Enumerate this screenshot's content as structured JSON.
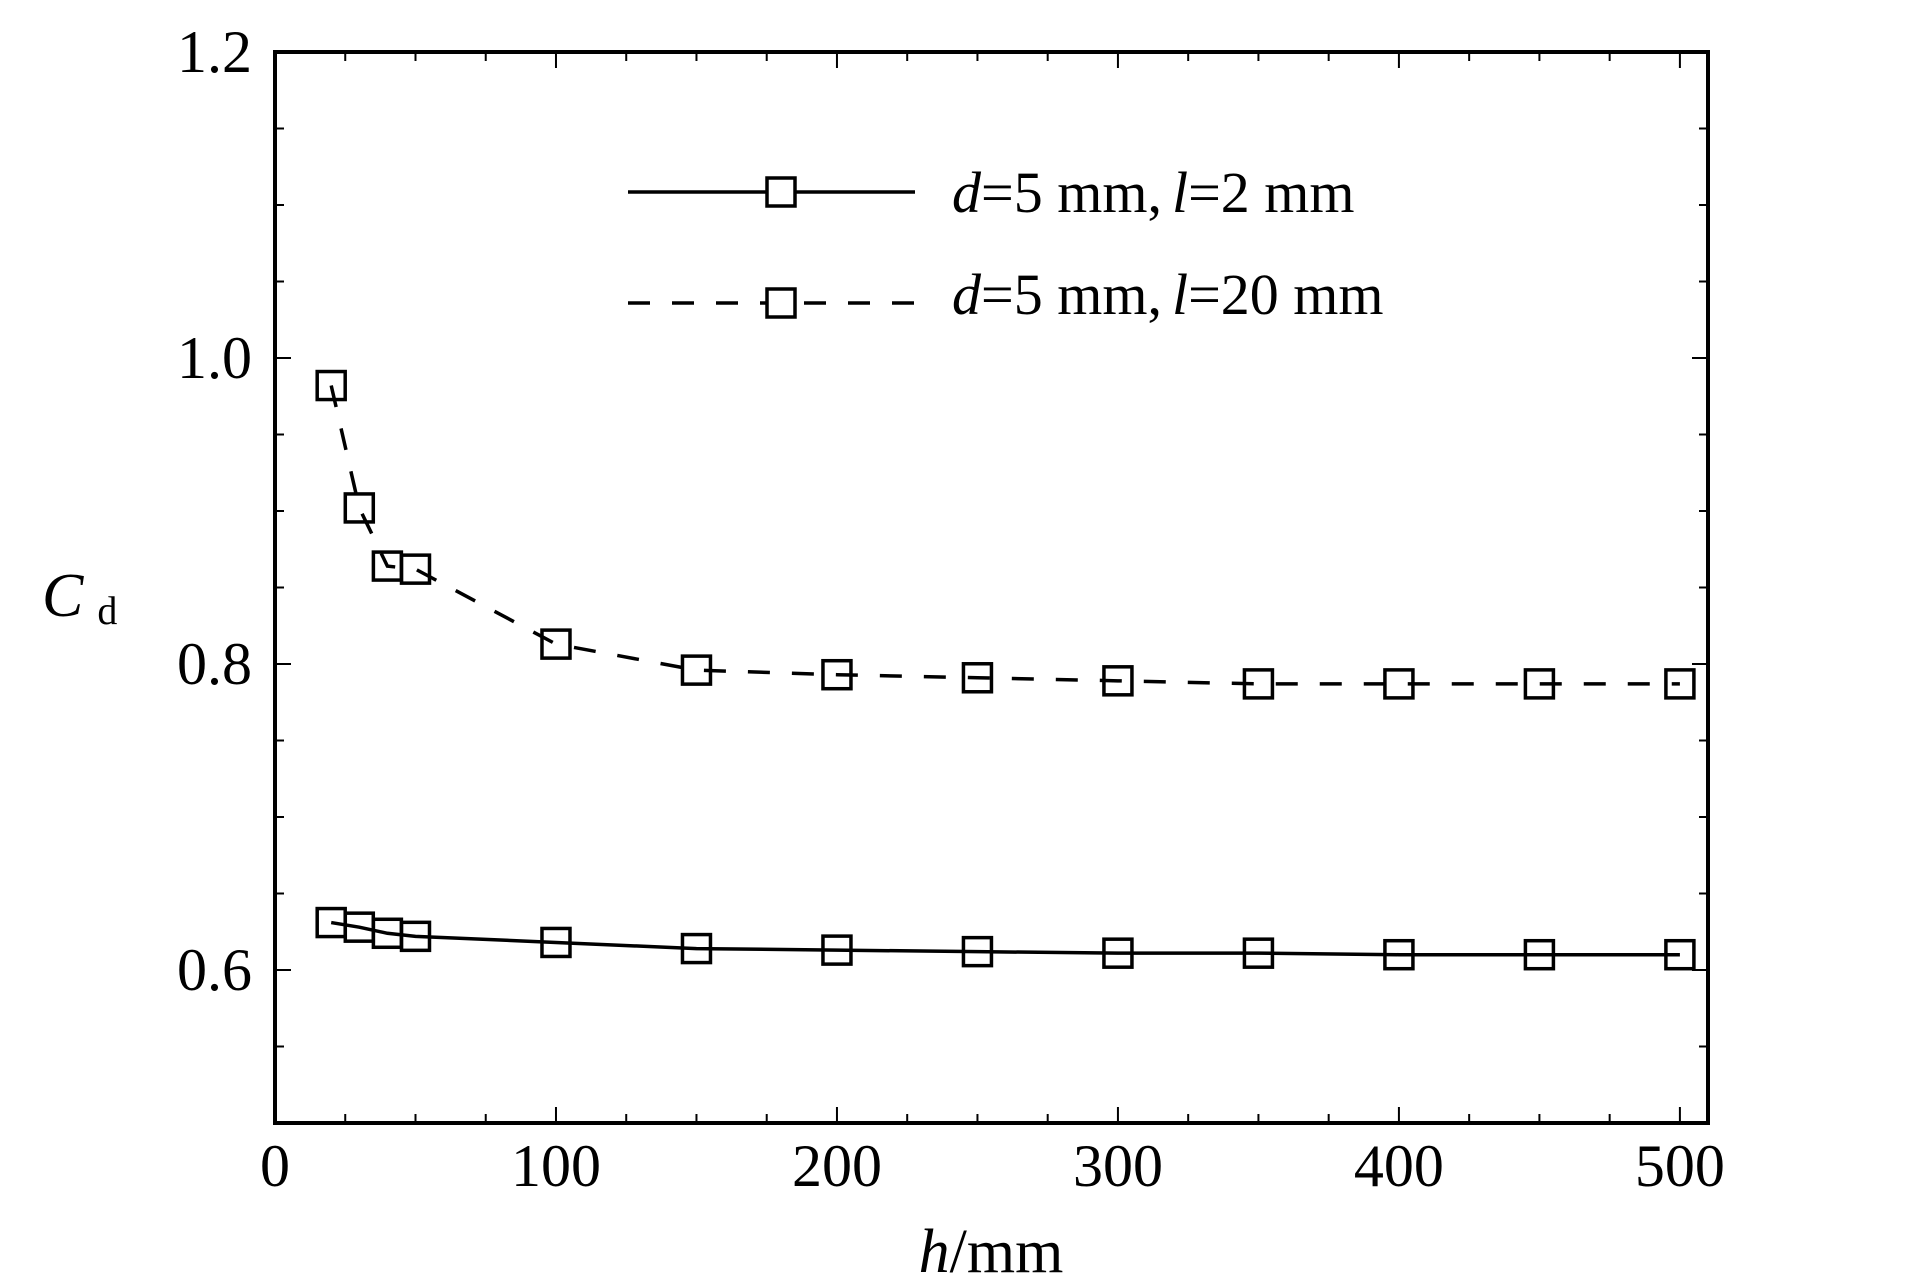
{
  "chart_data": {
    "type": "line",
    "xlabel": {
      "var": "h",
      "unit": "/mm"
    },
    "ylabel": {
      "var": "C",
      "sub": "d"
    },
    "xlim": [
      0,
      510
    ],
    "ylim": [
      0.5,
      1.2
    ],
    "xticks": [
      0,
      100,
      200,
      300,
      400,
      500
    ],
    "xtick_labels": [
      "0",
      "100",
      "200",
      "300",
      "400",
      "500"
    ],
    "yticks": [
      0.6,
      0.8,
      1.0,
      1.2
    ],
    "ytick_labels": [
      "0.6",
      "0.8",
      "1.0",
      "1.2"
    ],
    "grid": false,
    "legend_position": "top-center",
    "marker": "square",
    "series": [
      {
        "name": "d = 5 mm, l = 2 mm",
        "legend": {
          "d": "d",
          "dval": "=5 mm,",
          "l": "l",
          "lval": "=2 mm"
        },
        "line_style": "solid",
        "x": [
          20,
          30,
          40,
          50,
          100,
          150,
          200,
          250,
          300,
          350,
          400,
          450,
          500
        ],
        "y": [
          0.631,
          0.628,
          0.624,
          0.622,
          0.618,
          0.614,
          0.613,
          0.612,
          0.611,
          0.611,
          0.61,
          0.61,
          0.61
        ]
      },
      {
        "name": "d = 5 mm, l = 20 mm",
        "legend": {
          "d": "d",
          "dval": "=5 mm,",
          "l": "l",
          "lval": "=20 mm"
        },
        "line_style": "dashed",
        "x": [
          20,
          30,
          40,
          50,
          100,
          150,
          200,
          250,
          300,
          350,
          400,
          450,
          500
        ],
        "y": [
          0.982,
          0.902,
          0.864,
          0.862,
          0.813,
          0.796,
          0.793,
          0.791,
          0.789,
          0.787,
          0.787,
          0.787,
          0.787
        ]
      }
    ]
  }
}
